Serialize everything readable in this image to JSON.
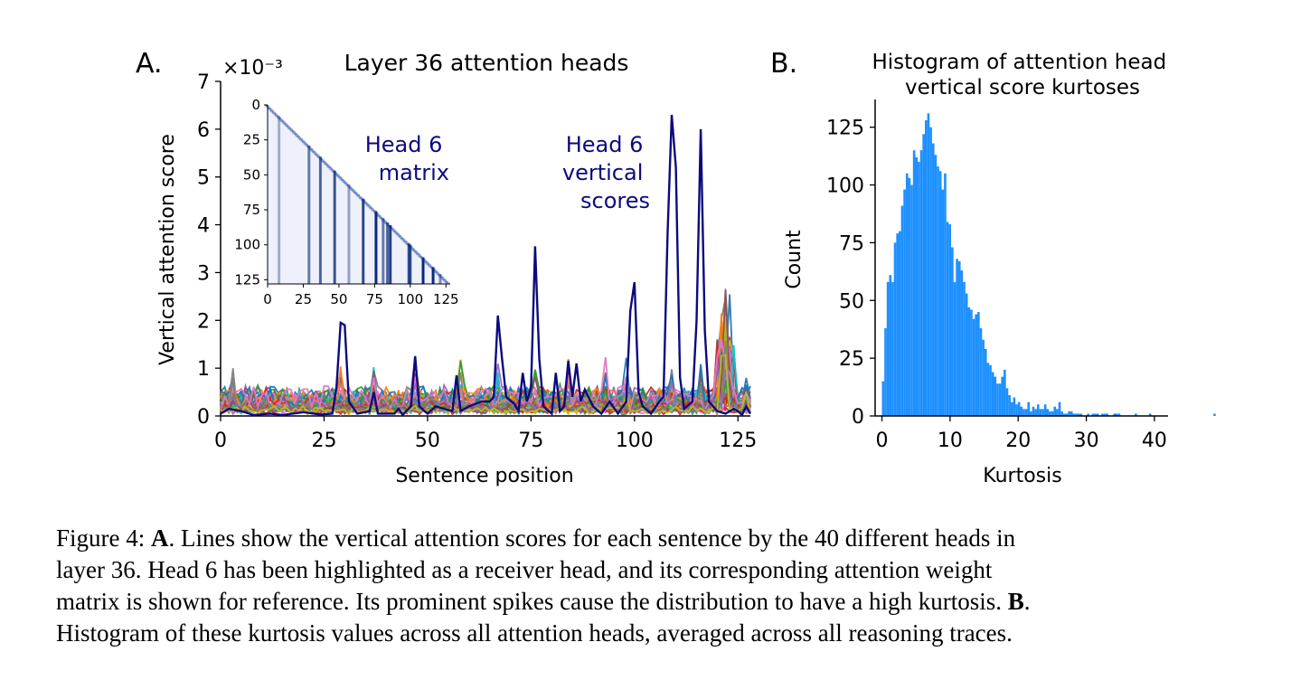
{
  "panel_a": {
    "letter": "A.",
    "title": "Layer 36 attention heads",
    "scale_label": "×10⁻³",
    "xlabel": "Sentence position",
    "ylabel": "Vertical attention score",
    "annotation_matrix": [
      "Head 6",
      "matrix"
    ],
    "annotation_scores": [
      "Head 6",
      "vertical",
      "scores"
    ],
    "colors": {
      "highlight": "#0b0b7d",
      "palette": [
        "#1f77b4",
        "#ff7f0e",
        "#2ca02c",
        "#d62728",
        "#9467bd",
        "#8c564b",
        "#e377c2",
        "#7f7f7f",
        "#bcbd22",
        "#17becf"
      ]
    },
    "inset_ticks": {
      "x": [
        "0",
        "25",
        "50",
        "75",
        "100",
        "125"
      ],
      "y": [
        "0",
        "25",
        "50",
        "75",
        "100",
        "125"
      ]
    }
  },
  "panel_b": {
    "letter": "B.",
    "title": [
      "Histogram of attention head",
      "vertical score kurtoses"
    ],
    "xlabel": "Kurtosis",
    "ylabel": "Count",
    "bar_color": "#1e90ff"
  },
  "chart_data": [
    {
      "type": "line",
      "title": "Layer 36 attention heads",
      "xlabel": "Sentence position",
      "ylabel": "Vertical attention score",
      "y_scale": "×10⁻³",
      "xlim": [
        0,
        128
      ],
      "ylim": [
        0,
        7
      ],
      "xticks": [
        "0",
        "25",
        "50",
        "75",
        "100",
        "125"
      ],
      "yticks": [
        "0",
        "1",
        "2",
        "3",
        "4",
        "5",
        "6",
        "7"
      ],
      "highlight_series": {
        "name": "Head 6",
        "points": [
          [
            0,
            0.05
          ],
          [
            2,
            0.15
          ],
          [
            5,
            0.1
          ],
          [
            8,
            0.02
          ],
          [
            12,
            0.05
          ],
          [
            15,
            0.02
          ],
          [
            20,
            0.08
          ],
          [
            24,
            0.03
          ],
          [
            27,
            0.05
          ],
          [
            28,
            0.6
          ],
          [
            29,
            1.95
          ],
          [
            30,
            1.9
          ],
          [
            31,
            0.3
          ],
          [
            33,
            0.05
          ],
          [
            36,
            0.1
          ],
          [
            37,
            0.5
          ],
          [
            38,
            0.05
          ],
          [
            42,
            0.05
          ],
          [
            43,
            0.15
          ],
          [
            44,
            0.02
          ],
          [
            46,
            0.2
          ],
          [
            47,
            1.25
          ],
          [
            48,
            0.2
          ],
          [
            50,
            0.05
          ],
          [
            52,
            0.2
          ],
          [
            54,
            0.15
          ],
          [
            56,
            0.1
          ],
          [
            57,
            0.85
          ],
          [
            58,
            0.1
          ],
          [
            60,
            0.2
          ],
          [
            63,
            0.3
          ],
          [
            65,
            0.3
          ],
          [
            66,
            0.4
          ],
          [
            67,
            2.1
          ],
          [
            68,
            1.2
          ],
          [
            69,
            0.4
          ],
          [
            71,
            0.25
          ],
          [
            72,
            0.1
          ],
          [
            73,
            0.9
          ],
          [
            74,
            0.3
          ],
          [
            75,
            0.6
          ],
          [
            76,
            3.55
          ],
          [
            77,
            1.2
          ],
          [
            78,
            0.2
          ],
          [
            80,
            0.05
          ],
          [
            81,
            0.9
          ],
          [
            82,
            0.1
          ],
          [
            83,
            0.2
          ],
          [
            84,
            1.15
          ],
          [
            85,
            0.4
          ],
          [
            86,
            1.1
          ],
          [
            87,
            0.3
          ],
          [
            88,
            0.55
          ],
          [
            90,
            0.2
          ],
          [
            92,
            0.05
          ],
          [
            94,
            0.3
          ],
          [
            96,
            0.05
          ],
          [
            98,
            0.3
          ],
          [
            99,
            2.2
          ],
          [
            100,
            2.8
          ],
          [
            101,
            0.5
          ],
          [
            102,
            0.2
          ],
          [
            104,
            0.05
          ],
          [
            106,
            0.3
          ],
          [
            107,
            0.4
          ],
          [
            108,
            3.8
          ],
          [
            109,
            6.3
          ],
          [
            110,
            5.2
          ],
          [
            111,
            0.8
          ],
          [
            112,
            0.15
          ],
          [
            114,
            0.3
          ],
          [
            115,
            2.0
          ],
          [
            116,
            6.0
          ],
          [
            117,
            1.8
          ],
          [
            118,
            0.3
          ],
          [
            120,
            0.1
          ],
          [
            122,
            0.05
          ],
          [
            124,
            0.15
          ],
          [
            125,
            0.1
          ],
          [
            126,
            0.02
          ],
          [
            127,
            0.2
          ],
          [
            128,
            0.05
          ]
        ]
      },
      "other_series_count": 39,
      "other_series_range": [
        0,
        2.7
      ]
    },
    {
      "type": "bar",
      "title": "Histogram of attention head vertical score kurtoses",
      "xlabel": "Kurtosis",
      "ylabel": "Count",
      "xlim": [
        -1,
        42
      ],
      "ylim": [
        0,
        137
      ],
      "xticks": [
        "0",
        "10",
        "20",
        "30",
        "40"
      ],
      "yticks": [
        "0",
        "25",
        "50",
        "75",
        "100",
        "125"
      ],
      "bin_start": 0,
      "bin_width": 0.35,
      "counts": [
        15,
        38,
        58,
        61,
        58,
        75,
        79,
        80,
        91,
        98,
        105,
        103,
        100,
        115,
        112,
        110,
        115,
        122,
        128,
        131,
        125,
        118,
        113,
        108,
        106,
        98,
        105,
        84,
        83,
        73,
        58,
        68,
        67,
        63,
        58,
        53,
        47,
        46,
        42,
        44,
        45,
        38,
        33,
        29,
        23,
        22,
        19,
        17,
        14,
        14,
        17,
        20,
        12,
        9,
        6,
        8,
        5,
        6,
        4,
        3,
        3,
        6,
        2,
        4,
        3,
        5,
        3,
        3,
        5,
        3,
        2,
        2,
        4,
        3,
        6,
        2,
        1,
        1,
        2,
        2,
        1,
        1,
        1,
        1,
        0,
        0,
        1,
        0,
        1,
        1,
        1,
        0,
        1,
        1,
        1,
        0,
        0,
        1,
        1,
        1,
        0,
        0,
        0,
        0,
        0,
        0,
        1,
        0,
        0,
        0,
        0,
        0,
        1,
        0,
        0,
        0,
        0,
        0,
        0,
        0,
        0,
        0,
        0,
        0,
        0,
        0,
        0,
        0,
        0,
        0,
        0,
        0,
        0,
        0,
        0,
        0,
        0,
        0,
        0,
        1,
        0
      ]
    }
  ],
  "caption": {
    "lines": [
      {
        "pre": "Figure 4: ",
        "bold": "A",
        "post": ". Lines show the vertical attention scores for each sentence by the 40 different heads in"
      },
      {
        "pre": "layer 36.  Head 6 has been highlighted as a receiver head, and its corresponding attention weight",
        "bold": "",
        "post": ""
      },
      {
        "pre": "matrix is shown for reference. Its prominent spikes cause the distribution to have a high kurtosis. ",
        "bold": "B",
        "post": "."
      },
      {
        "pre": "Histogram of these kurtosis values across all attention heads, averaged across all reasoning traces.",
        "bold": "",
        "post": ""
      }
    ]
  }
}
